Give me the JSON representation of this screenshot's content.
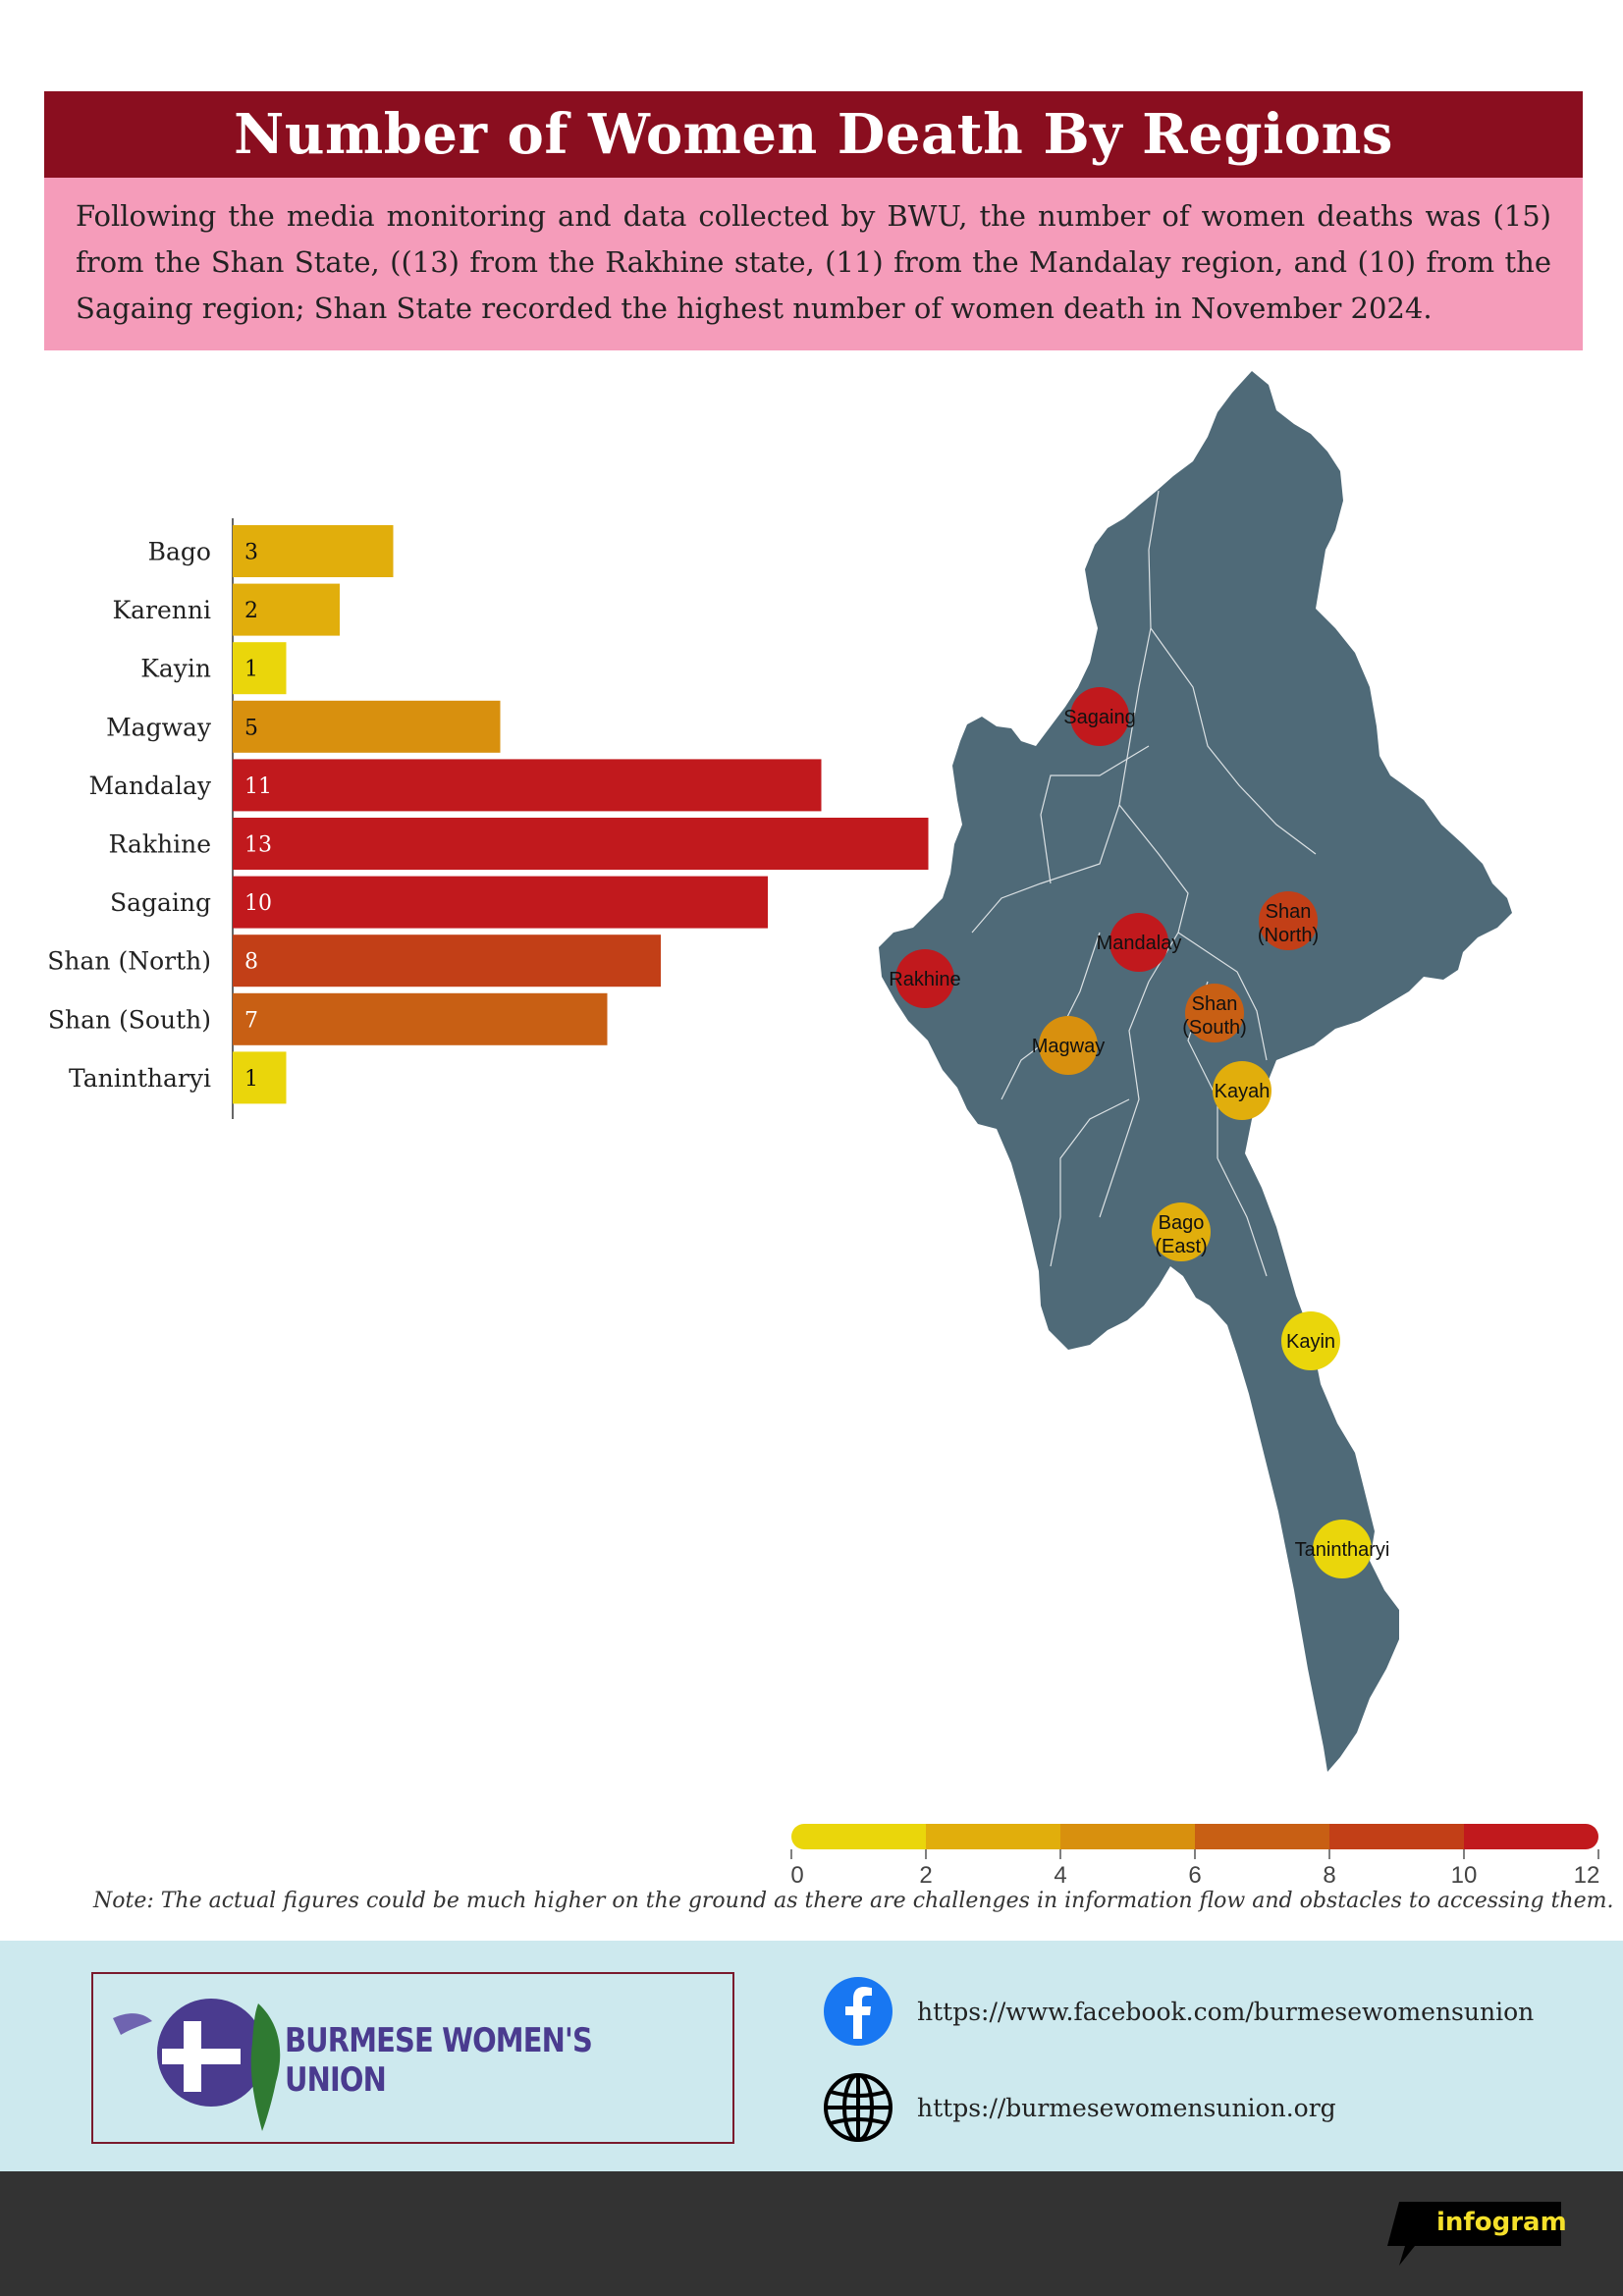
{
  "header": {
    "title": "Number of Women Death By Regions",
    "summary": "Following the media monitoring and data collected by BWU, the number of women deaths was (15) from the Shan State, ((13) from the Rakhine state, (11) from the Mandalay region, and (10) from the Sagaing region; Shan State recorded the highest number of women death in November 2024."
  },
  "chart_data": [
    {
      "type": "bar",
      "orientation": "horizontal",
      "categories": [
        "Bago",
        "Karenni",
        "Kayin",
        "Magway",
        "Mandalay",
        "Rakhine",
        "Sagaing",
        "Shan (North)",
        "Shan (South)",
        "Tanintharyi"
      ],
      "values": [
        3,
        2,
        1,
        5,
        11,
        13,
        10,
        8,
        7,
        1
      ],
      "data_labels": true,
      "color_scale": {
        "bins": [
          0,
          2,
          4,
          6,
          8,
          10,
          12
        ],
        "colors": [
          "#ead60b",
          "#e1ae0c",
          "#d8900e",
          "#c85f14",
          "#c23f17",
          "#c1191d"
        ]
      }
    },
    {
      "type": "map",
      "regions": [
        {
          "label": "Sagaing",
          "value": 10
        },
        {
          "label": "Mandalay",
          "value": 11
        },
        {
          "label": "Shan\n(North)",
          "value": 8
        },
        {
          "label": "Rakhine",
          "value": 13
        },
        {
          "label": "Shan\n(South)",
          "value": 7
        },
        {
          "label": "Magway",
          "value": 5
        },
        {
          "label": "Kayah",
          "value": 2
        },
        {
          "label": "Bago\n(East)",
          "value": 3
        },
        {
          "label": "Kayin",
          "value": 1
        },
        {
          "label": "Tanintharyi",
          "value": 1
        }
      ],
      "legend": {
        "ticks": [
          "0",
          "2",
          "4",
          "6",
          "8",
          "10",
          "12"
        ],
        "colors": [
          "#ead60b",
          "#e1ae0c",
          "#d8900e",
          "#c85f14",
          "#c23f17",
          "#c1191d"
        ]
      }
    }
  ],
  "note": "Note: The actual figures could be much higher on the ground as there are challenges in information flow and obstacles to accessing them.",
  "footer": {
    "org_name": "BURMESE WOMEN'S UNION",
    "facebook_url": "https://www.facebook.com/burmesewomensunion",
    "website_url": "https://burmesewomensunion.org",
    "facebook_icon": "facebook-icon",
    "globe_icon": "globe-icon",
    "branding": "infogram"
  },
  "colors": {
    "title_bg": "#8a0e1f",
    "summary_bg": "#f59cba",
    "map_fill": "#4f6a78",
    "footer_bg": "#cde9ee",
    "bottom_bar": "#333333"
  }
}
